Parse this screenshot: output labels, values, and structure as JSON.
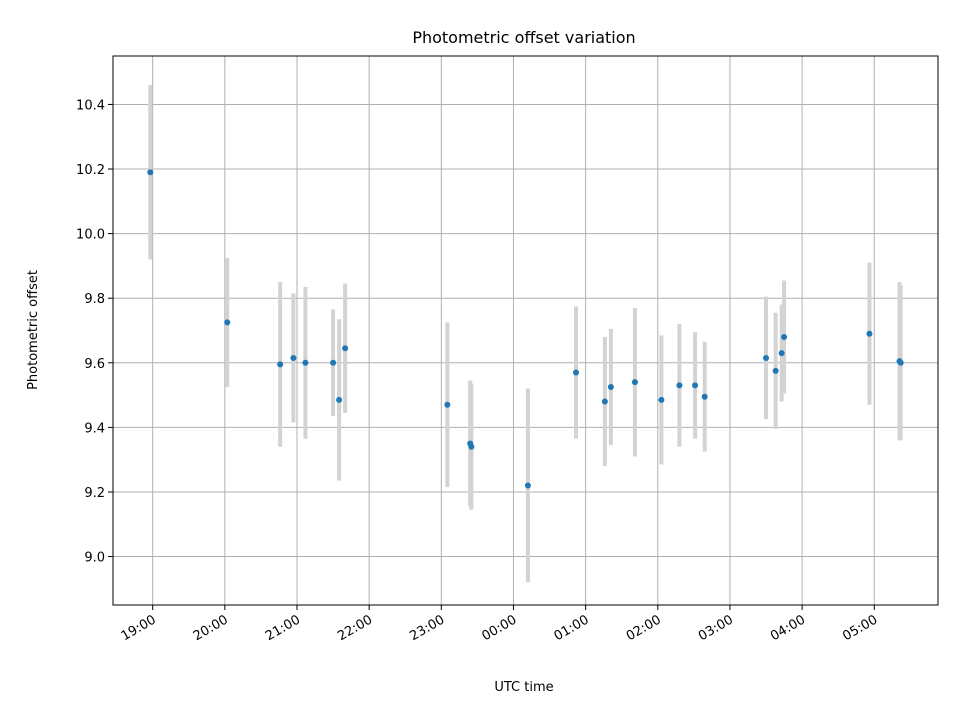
{
  "chart_data": {
    "type": "scatter",
    "title": "Photometric offset variation",
    "xlabel": "UTC time",
    "ylabel": "Photometric offset",
    "x_ticks": [
      "19:00",
      "20:00",
      "21:00",
      "22:00",
      "23:00",
      "00:00",
      "01:00",
      "02:00",
      "03:00",
      "04:00",
      "05:00"
    ],
    "y_ticks": [
      9.0,
      9.2,
      9.4,
      9.6,
      9.8,
      10.0,
      10.2,
      10.4
    ],
    "xlim": [
      "18:27",
      "05:53"
    ],
    "ylim": [
      8.85,
      10.55
    ],
    "grid": true,
    "point_color": "#1f77b4",
    "errorbar_color": "#d3d3d3",
    "points": [
      {
        "x": "18:58",
        "y": 10.19,
        "err": 0.27
      },
      {
        "x": "20:02",
        "y": 9.725,
        "err": 0.2
      },
      {
        "x": "20:46",
        "y": 9.595,
        "err": 0.255
      },
      {
        "x": "20:57",
        "y": 9.615,
        "err": 0.2
      },
      {
        "x": "21:07",
        "y": 9.6,
        "err": 0.235
      },
      {
        "x": "21:30",
        "y": 9.6,
        "err": 0.165
      },
      {
        "x": "21:35",
        "y": 9.485,
        "err": 0.25
      },
      {
        "x": "21:40",
        "y": 9.645,
        "err": 0.2
      },
      {
        "x": "23:05",
        "y": 9.47,
        "err": 0.255
      },
      {
        "x": "23:24",
        "y": 9.35,
        "err": 0.195
      },
      {
        "x": "23:25",
        "y": 9.34,
        "err": 0.195
      },
      {
        "x": "00:12",
        "y": 9.22,
        "err": 0.3
      },
      {
        "x": "00:52",
        "y": 9.57,
        "err": 0.205
      },
      {
        "x": "01:16",
        "y": 9.48,
        "err": 0.2
      },
      {
        "x": "01:21",
        "y": 9.525,
        "err": 0.18
      },
      {
        "x": "01:41",
        "y": 9.54,
        "err": 0.23
      },
      {
        "x": "02:03",
        "y": 9.485,
        "err": 0.2
      },
      {
        "x": "02:18",
        "y": 9.53,
        "err": 0.19
      },
      {
        "x": "02:31",
        "y": 9.53,
        "err": 0.165
      },
      {
        "x": "02:39",
        "y": 9.495,
        "err": 0.17
      },
      {
        "x": "03:30",
        "y": 9.615,
        "err": 0.19
      },
      {
        "x": "03:38",
        "y": 9.575,
        "err": 0.18
      },
      {
        "x": "03:43",
        "y": 9.63,
        "err": 0.15
      },
      {
        "x": "03:45",
        "y": 9.68,
        "err": 0.175
      },
      {
        "x": "04:56",
        "y": 9.69,
        "err": 0.22
      },
      {
        "x": "05:21",
        "y": 9.605,
        "err": 0.245
      },
      {
        "x": "05:22",
        "y": 9.6,
        "err": 0.24
      }
    ]
  }
}
